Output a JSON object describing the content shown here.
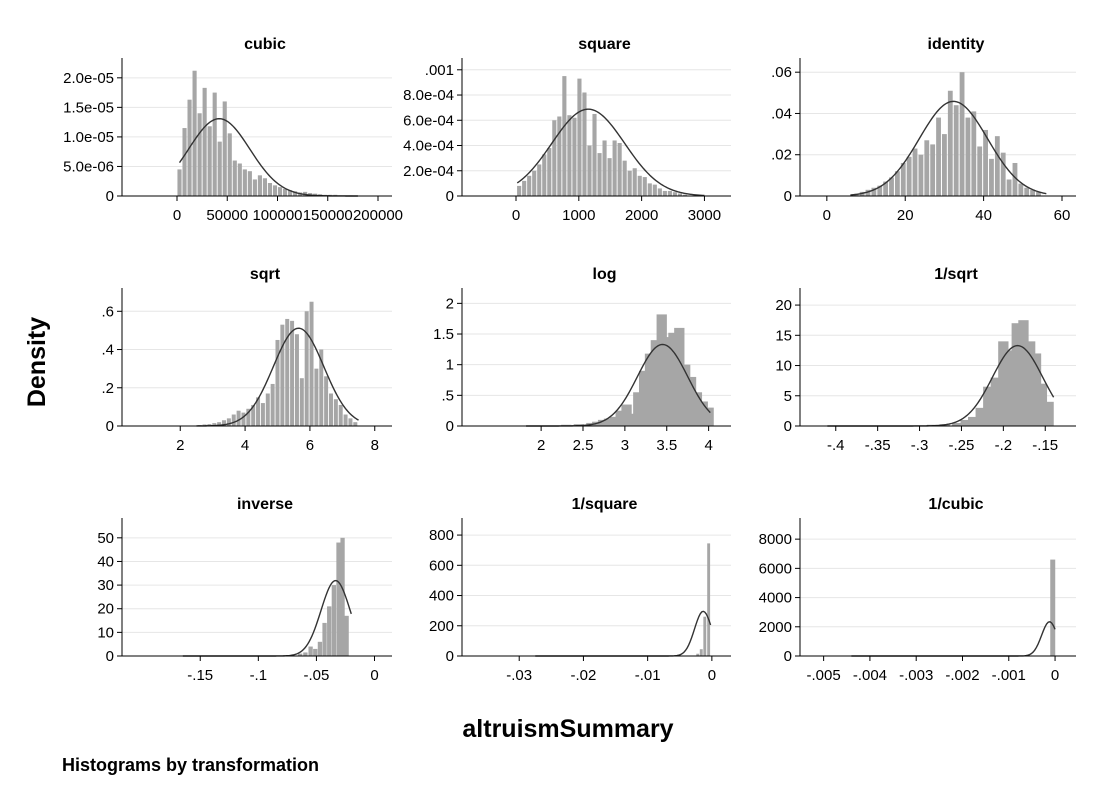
{
  "figure": {
    "ylabel": "Density",
    "xlabel": "altruismSummary",
    "note": "Histograms by transformation",
    "bar_color": "#a6a6a6",
    "curve_color": "#333333",
    "grid_color": "#e6e6e6"
  },
  "chart_data": [
    {
      "type": "bar",
      "title": "cubic",
      "xlim": [
        0,
        200000
      ],
      "ylim": [
        0,
        2.2e-05
      ],
      "x_ticks": [
        0,
        50000,
        100000,
        150000,
        200000
      ],
      "x_tick_labels": [
        "0",
        "50000",
        "100000",
        "150000",
        "200000"
      ],
      "y_ticks": [
        0,
        5e-06,
        1e-05,
        1.5e-05,
        2e-05
      ],
      "y_tick_labels": [
        "0",
        "5.0e-06",
        "1.0e-05",
        "1.5e-05",
        "2.0e-05"
      ],
      "bin_centers": [
        2500,
        7500,
        12500,
        17500,
        22500,
        27500,
        32500,
        37500,
        42500,
        47500,
        52500,
        57500,
        62500,
        67500,
        72500,
        77500,
        82500,
        87500,
        92500,
        97500,
        102500,
        107500,
        112500,
        117500,
        122500,
        127500,
        132500,
        137500,
        142500,
        147500,
        152500,
        157500,
        162500,
        167500,
        172500,
        177500,
        182500,
        187500,
        192500,
        197500
      ],
      "densities": [
        4.5e-06,
        1.15e-05,
        1.63e-05,
        2.12e-05,
        1.4e-05,
        1.83e-05,
        1.18e-05,
        1.75e-05,
        9.2e-06,
        1.6e-05,
        1.06e-05,
        6e-06,
        5.5e-06,
        4.5e-06,
        4.2e-06,
        2.8e-06,
        3.5e-06,
        3e-06,
        2.2e-06,
        1.8e-06,
        1.5e-06,
        1.2e-06,
        1e-06,
        8e-07,
        6e-07,
        7e-07,
        5e-07,
        4e-07,
        3e-07,
        2e-07,
        2e-07,
        2e-07,
        1e-07,
        1e-07,
        1e-07,
        0,
        0,
        0,
        0,
        0
      ],
      "normal_curve": {
        "mean": 42000,
        "sd": 30500,
        "x_range": [
          2500,
          180000
        ]
      }
    },
    {
      "type": "bar",
      "title": "square",
      "xlim": [
        0,
        3200
      ],
      "ylim": [
        0,
        0.00103
      ],
      "x_ticks": [
        0,
        1000,
        2000,
        3000
      ],
      "x_tick_labels": [
        "0",
        "1000",
        "2000",
        "3000"
      ],
      "y_ticks": [
        0,
        0.0002,
        0.0004,
        0.0006,
        0.0008,
        0.001
      ],
      "y_tick_labels": [
        "0",
        "2.0e-04",
        "4.0e-04",
        "6.0e-04",
        "8.0e-04",
        ".001"
      ],
      "bin_centers": [
        50,
        130,
        210,
        290,
        370,
        450,
        530,
        610,
        690,
        770,
        850,
        930,
        1010,
        1090,
        1170,
        1250,
        1330,
        1410,
        1490,
        1570,
        1650,
        1730,
        1810,
        1890,
        1970,
        2050,
        2130,
        2210,
        2290,
        2370,
        2450,
        2530,
        2610,
        2690,
        2770,
        2850,
        2930,
        3010
      ],
      "densities": [
        8e-05,
        0.00012,
        0.00016,
        0.0002,
        0.00025,
        0.00033,
        0.00038,
        0.0006,
        0.00063,
        0.00095,
        0.00064,
        0.00062,
        0.00093,
        0.00082,
        0.0004,
        0.00065,
        0.00034,
        0.00044,
        0.0003,
        0.00044,
        0.00042,
        0.00028,
        0.0002,
        0.00022,
        0.00016,
        0.00015,
        0.0001,
        9e-05,
        6e-05,
        4e-05,
        4e-05,
        3e-05,
        2e-05,
        1e-05,
        0,
        0,
        0,
        0
      ],
      "normal_curve": {
        "mean": 1150,
        "sd": 580,
        "x_range": [
          20,
          3000
        ]
      }
    },
    {
      "type": "bar",
      "title": "identity",
      "xlim": [
        -2,
        60
      ],
      "ylim": [
        0,
        0.063
      ],
      "x_ticks": [
        0,
        20,
        40,
        60
      ],
      "x_tick_labels": [
        "0",
        "20",
        "40",
        "60"
      ],
      "y_ticks": [
        0,
        0.02,
        0.04,
        0.06
      ],
      "y_tick_labels": [
        "0",
        ".02",
        ".04",
        ".06"
      ],
      "bin_centers": [
        7.5,
        9,
        10.5,
        12,
        13.5,
        15,
        16.5,
        18,
        19.5,
        21,
        22.5,
        24,
        25.5,
        27,
        28.5,
        30,
        31.5,
        33,
        34.5,
        36,
        37.5,
        39,
        40.5,
        42,
        43.5,
        45,
        46.5,
        48,
        49.5,
        51,
        52.5,
        54
      ],
      "densities": [
        0.001,
        0.002,
        0.003,
        0.004,
        0.005,
        0.007,
        0.009,
        0.012,
        0.016,
        0.019,
        0.023,
        0.02,
        0.027,
        0.025,
        0.038,
        0.03,
        0.051,
        0.044,
        0.06,
        0.038,
        0.041,
        0.024,
        0.032,
        0.018,
        0.029,
        0.021,
        0.008,
        0.016,
        0.006,
        0.004,
        0.003,
        0.002
      ],
      "normal_curve": {
        "mean": 32.3,
        "sd": 8.7,
        "x_range": [
          6,
          56
        ]
      }
    },
    {
      "type": "bar",
      "title": "sqrt",
      "xlim": [
        1.9,
        8.1
      ],
      "ylim": [
        0,
        0.68
      ],
      "x_ticks": [
        2,
        4,
        6,
        8
      ],
      "x_tick_labels": [
        "2",
        "4",
        "6",
        "8"
      ],
      "y_ticks": [
        0,
        0.2,
        0.4,
        0.6
      ],
      "y_tick_labels": [
        "0",
        ".2",
        ".4",
        ".6"
      ],
      "bin_centers": [
        2.6,
        2.75,
        2.9,
        3.05,
        3.2,
        3.35,
        3.5,
        3.65,
        3.8,
        3.95,
        4.1,
        4.25,
        4.4,
        4.55,
        4.7,
        4.85,
        5.0,
        5.15,
        5.3,
        5.45,
        5.6,
        5.75,
        5.9,
        6.05,
        6.2,
        6.35,
        6.5,
        6.65,
        6.8,
        6.95,
        7.1,
        7.25,
        7.4
      ],
      "densities": [
        0.005,
        0.008,
        0.01,
        0.015,
        0.02,
        0.03,
        0.04,
        0.06,
        0.08,
        0.07,
        0.09,
        0.11,
        0.15,
        0.12,
        0.17,
        0.22,
        0.45,
        0.53,
        0.56,
        0.55,
        0.48,
        0.25,
        0.6,
        0.65,
        0.3,
        0.4,
        0.26,
        0.17,
        0.14,
        0.11,
        0.06,
        0.04,
        0.02
      ],
      "normal_curve": {
        "mean": 5.65,
        "sd": 0.78,
        "x_range": [
          2.5,
          7.5
        ]
      }
    },
    {
      "type": "bar",
      "title": "log",
      "xlim": [
        1.7,
        4.1
      ],
      "ylim": [
        0,
        2.12
      ],
      "x_ticks": [
        2,
        2.5,
        3,
        3.5,
        4
      ],
      "x_tick_labels": [
        "2",
        "2.5",
        "3",
        "3.5",
        "4"
      ],
      "y_ticks": [
        0,
        0.5,
        1,
        1.5,
        2
      ],
      "y_tick_labels": [
        "0",
        ".5",
        "1",
        "1.5",
        "2"
      ],
      "bin_centers": [
        2.3,
        2.45,
        2.6,
        2.67,
        2.74,
        2.81,
        2.88,
        2.95,
        3.02,
        3.09,
        3.16,
        3.23,
        3.3,
        3.37,
        3.44,
        3.51,
        3.58,
        3.65,
        3.72,
        3.79,
        3.86,
        3.93,
        4.0
      ],
      "densities": [
        0.02,
        0.03,
        0.05,
        0.07,
        0.1,
        0.12,
        0.15,
        0.25,
        0.35,
        0.2,
        0.55,
        0.9,
        1.18,
        1.4,
        1.82,
        1.45,
        1.52,
        1.6,
        1.0,
        0.8,
        0.55,
        0.4,
        0.3
      ],
      "normal_curve": {
        "mean": 3.45,
        "sd": 0.3,
        "x_range": [
          1.82,
          4.02
        ]
      }
    },
    {
      "type": "bar",
      "title": "1/sqrt",
      "xlim": [
        -0.42,
        -0.13
      ],
      "ylim": [
        0,
        21.5
      ],
      "x_ticks": [
        -0.4,
        -0.35,
        -0.3,
        -0.25,
        -0.2,
        -0.15
      ],
      "x_tick_labels": [
        "-.4",
        "-.35",
        "-.3",
        "-.25",
        "-.2",
        "-.15"
      ],
      "y_ticks": [
        0,
        5,
        10,
        15,
        20
      ],
      "y_tick_labels": [
        "0",
        "5",
        "10",
        "15",
        "20"
      ],
      "bin_centers": [
        -0.3,
        -0.285,
        -0.27,
        -0.255,
        -0.245,
        -0.236,
        -0.227,
        -0.218,
        -0.209,
        -0.2,
        -0.192,
        -0.184,
        -0.176,
        -0.168,
        -0.161,
        -0.154,
        -0.146
      ],
      "densities": [
        0.1,
        0.2,
        0.3,
        0.5,
        1.0,
        1.5,
        3.0,
        6.5,
        8.0,
        14.0,
        12.5,
        17.0,
        17.5,
        14.0,
        12.0,
        7.0,
        4.0
      ],
      "normal_curve": {
        "mean": -0.183,
        "sd": 0.03,
        "x_range": [
          -0.41,
          -0.14
        ]
      }
    },
    {
      "type": "bar",
      "title": "inverse",
      "xlim": [
        -0.17,
        0.003
      ],
      "ylim": [
        0,
        55
      ],
      "x_ticks": [
        -0.15,
        -0.1,
        -0.05,
        0
      ],
      "x_tick_labels": [
        "-.15",
        "-.1",
        "-.05",
        "0"
      ],
      "y_ticks": [
        0,
        10,
        20,
        30,
        40,
        50
      ],
      "y_tick_labels": [
        "0",
        "10",
        "20",
        "30",
        "40",
        "50"
      ],
      "bin_centers": [
        -0.064,
        -0.0595,
        -0.055,
        -0.051,
        -0.047,
        -0.043,
        -0.039,
        -0.035,
        -0.031,
        -0.0275,
        -0.024
      ],
      "densities": [
        1,
        1.5,
        4,
        3,
        6,
        14,
        21,
        30,
        48,
        50,
        17
      ],
      "normal_curve": {
        "mean": -0.0335,
        "sd": 0.0125,
        "x_range": [
          -0.165,
          -0.02
        ]
      }
    },
    {
      "type": "bar",
      "title": "1/square",
      "xlim": [
        -0.0305,
        0.0008
      ],
      "ylim": [
        0,
        860
      ],
      "x_ticks": [
        -0.03,
        -0.02,
        -0.01,
        0
      ],
      "x_tick_labels": [
        "-.03",
        "-.02",
        "-.01",
        "0"
      ],
      "y_ticks": [
        0,
        200,
        400,
        600,
        800
      ],
      "y_tick_labels": [
        "0",
        "200",
        "400",
        "600",
        "800"
      ],
      "bin_centers": [
        -0.0022,
        -0.00165,
        -0.0011,
        -0.0005
      ],
      "densities": [
        15,
        45,
        260,
        745
      ],
      "normal_curve": {
        "mean": -0.00135,
        "sd": 0.00135,
        "x_range": [
          -0.0275,
          -0.0002
        ]
      }
    },
    {
      "type": "bar",
      "title": "1/cubic",
      "xlim": [
        -0.0051,
        0.00015
      ],
      "ylim": [
        0,
        8900
      ],
      "x_ticks": [
        -0.005,
        -0.004,
        -0.003,
        -0.002,
        -0.001,
        0
      ],
      "x_tick_labels": [
        "-.005",
        "-.004",
        "-.003",
        "-.002",
        "-.001",
        "0"
      ],
      "y_ticks": [
        0,
        2000,
        4000,
        6000,
        8000
      ],
      "y_tick_labels": [
        "0",
        "2000",
        "4000",
        "6000",
        "8000"
      ],
      "bin_centers": [
        -5e-05
      ],
      "densities": [
        6600
      ],
      "normal_curve": {
        "mean": -0.00012,
        "sd": 0.00017,
        "x_range": [
          -0.0044,
          0
        ]
      }
    }
  ]
}
